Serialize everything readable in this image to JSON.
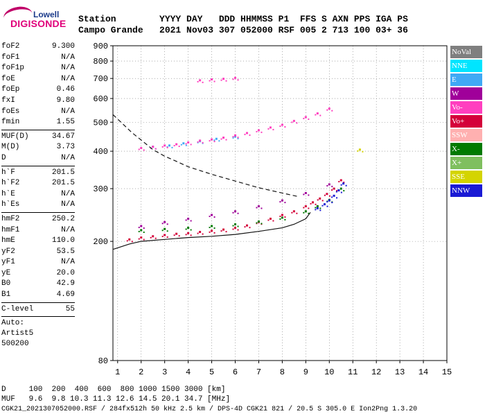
{
  "logo": {
    "top": "Lowell",
    "main": "DIGISONDE"
  },
  "header": {
    "row1": "Station        YYYY DAY   DDD HHMMSS P1  FFS S AXN PPS IGA PS",
    "row2": "Campo Grande   2021 Nov03 307 052000 RSF 005 2 713 100 03+ 36"
  },
  "params": [
    {
      "k": "foF2",
      "v": "9.300"
    },
    {
      "k": "foF1",
      "v": "N/A"
    },
    {
      "k": "foF1p",
      "v": "N/A"
    },
    {
      "k": "foE",
      "v": "N/A"
    },
    {
      "k": "foEp",
      "v": "0.46"
    },
    {
      "k": "fxI",
      "v": "9.80"
    },
    {
      "k": "foEs",
      "v": "N/A"
    },
    {
      "k": "fmin",
      "v": "1.55"
    },
    {
      "sep": true
    },
    {
      "k": "MUF(D)",
      "v": "34.67"
    },
    {
      "k": "M(D)",
      "v": "3.73"
    },
    {
      "k": "D",
      "v": "N/A"
    },
    {
      "sep": true
    },
    {
      "k": "h`F",
      "v": "201.5"
    },
    {
      "k": "h`F2",
      "v": "201.5"
    },
    {
      "k": "h`E",
      "v": "N/A"
    },
    {
      "k": "h`Es",
      "v": "N/A"
    },
    {
      "sep": true
    },
    {
      "k": "hmF2",
      "v": "250.2"
    },
    {
      "k": "hmF1",
      "v": "N/A"
    },
    {
      "k": "hmE",
      "v": "110.0"
    },
    {
      "k": "yF2",
      "v": "53.5"
    },
    {
      "k": "yF1",
      "v": "N/A"
    },
    {
      "k": "yE",
      "v": "20.0"
    },
    {
      "k": "B0",
      "v": "42.9"
    },
    {
      "k": "B1",
      "v": "4.69"
    },
    {
      "sep": true
    },
    {
      "k": "C-level",
      "v": "55"
    },
    {
      "sep": true
    }
  ],
  "auto": [
    "Auto:",
    "Artist5",
    "500200"
  ],
  "legend": [
    {
      "label": "NoVal",
      "bg": "#7f7f7f",
      "fg": "#ffffff"
    },
    {
      "label": "NNE",
      "bg": "#00e5ff",
      "fg": "#ffffff"
    },
    {
      "label": "E",
      "bg": "#3fa9f5",
      "fg": "#ffffff"
    },
    {
      "label": "W",
      "bg": "#a0009a",
      "fg": "#ffffff"
    },
    {
      "label": "Vo-",
      "bg": "#ff3fbf",
      "fg": "#ffffff"
    },
    {
      "label": "Vo+",
      "bg": "#d4003a",
      "fg": "#ffffff"
    },
    {
      "label": "SSW",
      "bg": "#ffb0b0",
      "fg": "#ffffff"
    },
    {
      "label": "X-",
      "bg": "#007a00",
      "fg": "#ffffff"
    },
    {
      "label": "X+",
      "bg": "#7fbf5f",
      "fg": "#ffffff"
    },
    {
      "label": "SSE",
      "bg": "#d4d400",
      "fg": "#ffffff"
    },
    {
      "label": "NNW",
      "bg": "#1a1ad4",
      "fg": "#ffffff"
    }
  ],
  "bottom": {
    "d_row": "D     100  200  400  600  800 1000 1500 3000 [km]",
    "muf_row": "MUF   9.6  9.8 10.3 11.3 12.6 14.5 20.1 34.7 [MHz]",
    "footer": "CGK21_2021307052000.RSF / 284fx512h 50 kHz 2.5 km / DPS-4D CGK21 821 / 20.5 S 305.0 E Ion2Png 1.3.20"
  },
  "chart_data": {
    "type": "scatter",
    "xlim": [
      0.8,
      15
    ],
    "ylim": [
      80,
      900
    ],
    "y_scale": "log",
    "xticks": [
      1,
      2,
      3,
      4,
      5,
      6,
      7,
      8,
      9,
      10,
      11,
      12,
      13,
      14,
      15
    ],
    "yticks": [
      80,
      200,
      300,
      400,
      500,
      600,
      700,
      800,
      900
    ],
    "grid": true,
    "legend_position": "right",
    "series": [
      {
        "name": "Vo+",
        "color": "#d4003a",
        "x": [
          1.5,
          2.0,
          2.5,
          3.0,
          3.5,
          4.0,
          4.5,
          5.0,
          5.5,
          6.0,
          6.5,
          7.0,
          7.5,
          8.0,
          8.5,
          9.0,
          9.3,
          9.6,
          9.9,
          10.2,
          10.5
        ],
        "y": [
          203,
          206,
          208,
          210,
          212,
          213,
          215,
          217,
          219,
          222,
          226,
          232,
          238,
          245,
          252,
          262,
          270,
          278,
          288,
          300,
          320
        ]
      },
      {
        "name": "X-",
        "color": "#007a00",
        "x": [
          2.0,
          3.0,
          4.0,
          5.0,
          6.0,
          7.0,
          8.0,
          9.0,
          9.5,
          10.0,
          10.5
        ],
        "y": [
          218,
          220,
          222,
          225,
          228,
          233,
          240,
          252,
          262,
          275,
          300
        ]
      },
      {
        "name": "NNW",
        "color": "#1a1ad4",
        "x": [
          9.5,
          9.8,
          10.0,
          10.2,
          10.4,
          10.6
        ],
        "y": [
          258,
          266,
          274,
          284,
          296,
          312
        ]
      },
      {
        "name": "W",
        "color": "#a0009a",
        "x": [
          2.0,
          3.0,
          4.0,
          5.0,
          6.0,
          7.0,
          8.0,
          9.0,
          10.0
        ],
        "y": [
          225,
          232,
          238,
          245,
          252,
          262,
          274,
          290,
          310
        ]
      },
      {
        "name": "E",
        "color": "#3fa9f5",
        "x": [
          2.5,
          3.2,
          3.8,
          4.5,
          5.2,
          6.0
        ],
        "y": [
          414,
          418,
          425,
          432,
          440,
          448
        ]
      },
      {
        "name": "Vo-",
        "color": "#ff3fbf",
        "x": [
          2.0,
          2.5,
          3.0,
          3.5,
          4.0,
          4.5,
          5.0,
          5.5,
          6.0,
          6.5,
          7.0,
          7.5,
          8.0,
          8.5,
          9.0,
          9.5,
          10.0
        ],
        "y": [
          410,
          414,
          418,
          422,
          428,
          434,
          438,
          444,
          452,
          460,
          470,
          480,
          490,
          505,
          520,
          535,
          555
        ]
      },
      {
        "name": "Vo-",
        "color": "#ff3fbf",
        "x": [
          4.5,
          5.0,
          5.5,
          6.0
        ],
        "y": [
          690,
          695,
          698,
          703
        ]
      },
      {
        "name": "SSE",
        "color": "#d4d400",
        "x": [
          11.3
        ],
        "y": [
          405
        ]
      }
    ],
    "profile_solid": {
      "x": [
        0.8,
        1.5,
        2.0,
        3.0,
        4.0,
        5.0,
        6.0,
        7.0,
        8.0,
        8.5,
        9.0,
        9.2
      ],
      "y": [
        188,
        196,
        200,
        203,
        206,
        208,
        211,
        216,
        222,
        228,
        238,
        250
      ]
    },
    "muf_dashed": {
      "x": [
        0.8,
        1.2,
        1.6,
        2.0,
        2.5,
        3.0,
        3.5,
        4.0,
        5.0,
        6.0,
        7.0,
        8.0,
        8.7
      ],
      "y": [
        530,
        495,
        462,
        436,
        405,
        385,
        370,
        355,
        335,
        318,
        302,
        290,
        282
      ]
    }
  }
}
